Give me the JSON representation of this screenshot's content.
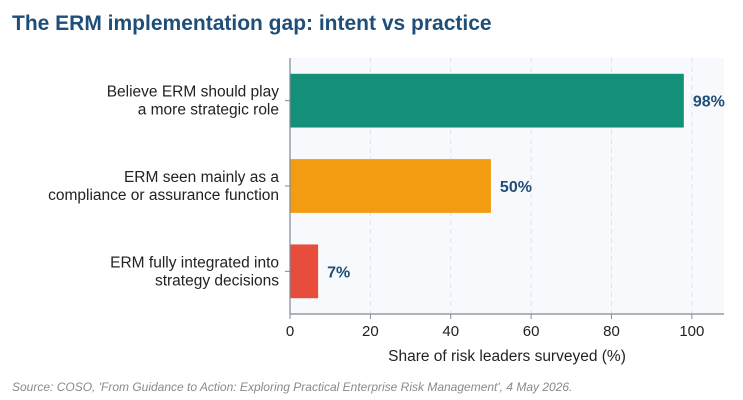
{
  "title": "The ERM implementation gap: intent vs practice",
  "source": "Source: COSO, 'From Guidance to Action: Exploring Practical Enterprise Risk Management', 4 May 2026.",
  "colors": {
    "title": "#1f4e79",
    "value_label": "#1f4e79",
    "plot_background": "#f7f9fc"
  },
  "chart_data": {
    "type": "bar",
    "orientation": "horizontal",
    "categories": [
      [
        "Believe ERM should play",
        "a more strategic role"
      ],
      [
        "ERM seen mainly as a",
        "compliance or assurance function"
      ],
      [
        "ERM fully integrated into",
        "strategy decisions"
      ]
    ],
    "values": [
      98,
      50,
      7
    ],
    "value_labels": [
      "98%",
      "50%",
      "7%"
    ],
    "bar_colors": [
      "#159078",
      "#f39c12",
      "#e74c3c"
    ],
    "xlabel": "Share of risk leaders surveyed (%)",
    "ylabel": "",
    "xlim": [
      0,
      108
    ],
    "xticks": [
      0,
      20,
      40,
      60,
      80,
      100
    ],
    "grid": "vertical dashed",
    "legend": "none"
  }
}
